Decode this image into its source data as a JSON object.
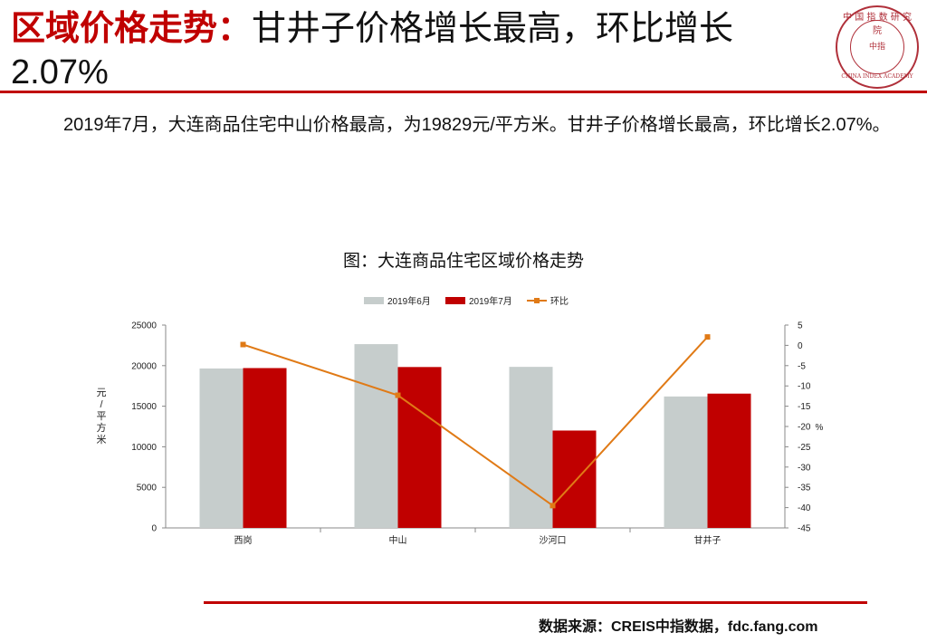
{
  "header": {
    "title_highlight": "区域价格走势：",
    "title_rest": "甘井子价格增长最高，环比增长2.07%",
    "logo_top": "中 国 指 数 研 究 院",
    "logo_center": "中指",
    "logo_bottom": "CHINA INDEX ACADEMY"
  },
  "body": {
    "paragraph": "2019年7月，大连商品住宅中山价格最高，为19829元/平方米。甘井子价格增长最高，环比增长2.07%。"
  },
  "chart_data": {
    "type": "bar",
    "title": "图：大连商品住宅区域价格走势",
    "categories": [
      "西岗",
      "中山",
      "沙河口",
      "甘井子"
    ],
    "series": [
      {
        "name": "2019年6月",
        "type": "bar",
        "axis": "left",
        "color": "#c6cdcc",
        "values": [
          19650,
          22650,
          19850,
          16200
        ]
      },
      {
        "name": "2019年7月",
        "type": "bar",
        "axis": "left",
        "color": "#c00000",
        "values": [
          19700,
          19829,
          12000,
          16550
        ]
      },
      {
        "name": "环比",
        "type": "line",
        "axis": "right",
        "color": "#e07a16",
        "values": [
          0.2,
          -12.3,
          -39.5,
          2.07
        ]
      }
    ],
    "ylabel_left": "元/平方米",
    "ylabel_right": "%",
    "ylim_left": [
      0,
      25000
    ],
    "yticks_left": [
      0,
      5000,
      10000,
      15000,
      20000,
      25000
    ],
    "ylim_right": [
      -45,
      5
    ],
    "yticks_right": [
      5,
      0,
      -5,
      -10,
      -15,
      -20,
      -25,
      -30,
      -35,
      -40,
      -45
    ],
    "legend_position": "top",
    "grid": false
  },
  "footer": {
    "source": "数据来源：CREIS中指数据，fdc.fang.com"
  }
}
